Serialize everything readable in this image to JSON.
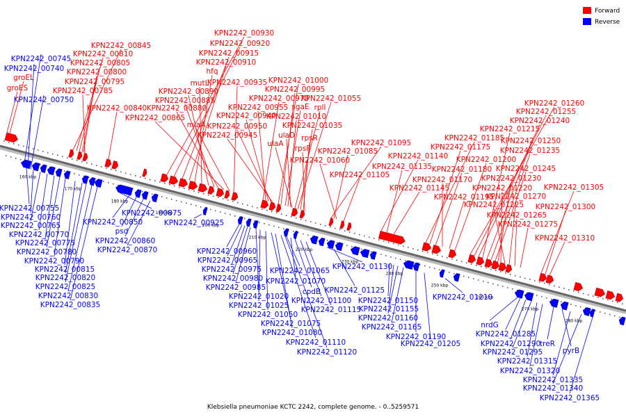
{
  "legend": [
    {
      "label": "Forward",
      "color": "#ff0000"
    },
    {
      "label": "Reverse",
      "color": "#0000ff"
    }
  ],
  "caption": "Klebsiella pneumoniae KCTC 2242, complete genome. - 0..5259571",
  "ticks": [
    "160 kbp",
    "170 kbp",
    "180 kbp",
    "190 kbp",
    "200 kbp",
    "210 kbp",
    "220 kbp",
    "230 kbp",
    "240 kbp",
    "250 kbp",
    "260 kbp",
    "270 kbp",
    "280 kbp"
  ],
  "forward_labels": [
    "KPN2242_00845",
    "KPN2242_00810",
    "KPN2242_00805",
    "KPN2242_00800",
    "KPN2242_00795",
    "KPN2242_00785",
    "KPN2242_00840",
    "groEL",
    "groES",
    "KPN2242_00930",
    "KPN2242_00920",
    "KPN2242_00915",
    "KPN2242_00910",
    "hfq",
    "mutL",
    "KPN2242_00890",
    "KPN2242_00885",
    "KPN2242_00880",
    "KPN2242_00865",
    "miaA",
    "KPN2242_00935",
    "KPN2242_00970",
    "KPN2242_00955",
    "KPN2242_00940",
    "KPN2242_00950",
    "KPN2242_00945",
    "KPN2242_01000",
    "KPN2242_00995",
    "sgaE",
    "KPN2242_01010",
    "ulaD",
    "ulaA",
    "rplI",
    "KPN2242_01055",
    "KPN2242_01035",
    "rpsR",
    "rpsF",
    "KPN2242_01095",
    "KPN2242_01085",
    "KPN2242_01060",
    "KPN2242_01105",
    "KPN2242_01140",
    "KPN2242_01135",
    "KPN2242_01145",
    "KPN2242_01185",
    "KPN2242_01175",
    "KPN2242_01180",
    "KPN2242_01170",
    "KPN2242_01195",
    "KPN2242_01200",
    "KPN2242_01260",
    "KPN2242_01255",
    "KPN2242_01240",
    "KPN2242_01215",
    "KPN2242_01250",
    "KPN2242_01235",
    "KPN2242_01245",
    "KPN2242_01230",
    "KPN2242_01220",
    "KPN2242_01225",
    "KPN2242_01270",
    "KPN2242_01265",
    "KPN2242_01275",
    "KPN2242_01305",
    "KPN2242_01300",
    "KPN2242_01310"
  ],
  "reverse_labels": [
    "KPN2242_00745",
    "KPN2242_00740",
    "KPN2242_00750",
    "KPN2242_00755",
    "KPN2242_00760",
    "KPN2242_00765",
    "KPN2242_00770",
    "KPN2242_00775",
    "KPN2242_00780",
    "KPN2242_00790",
    "KPN2242_00815",
    "KPN2242_00820",
    "KPN2242_00825",
    "KPN2242_00830",
    "KPN2242_00835",
    "KPN2242_00875",
    "KPN2242_00850",
    "psd",
    "KPN2242_00860",
    "KPN2242_00870",
    "KPN2242_00925",
    "KPN2242_00960",
    "KPN2242_00965",
    "KPN2242_00975",
    "KPN2242_00980",
    "KPN2242_00985",
    "KPN2242_01020",
    "KPN2242_01025",
    "KPN2242_01050",
    "KPN2242_01075",
    "KPN2242_01080",
    "KPN2242_01110",
    "KPN2242_01120",
    "KPN2242_01065",
    "KPN2242_01070",
    "cpdB",
    "KPN2242_01100",
    "KPN2242_01115",
    "KPN2242_01130",
    "KPN2242_01125",
    "KPN2242_01150",
    "KPN2242_01155",
    "KPN2242_01160",
    "KPN2242_01165",
    "KPN2242_01190",
    "KPN2242_01205",
    "KPN2242_01210",
    "nrdG",
    "KPN2242_01285",
    "KPN2242_01290",
    "KPN2242_01295",
    "KPN2242_01315",
    "KPN2242_01320",
    "treR",
    "pyrB",
    "KPN2242_01335",
    "KPN2242_01340",
    "KPN2242_01365"
  ]
}
